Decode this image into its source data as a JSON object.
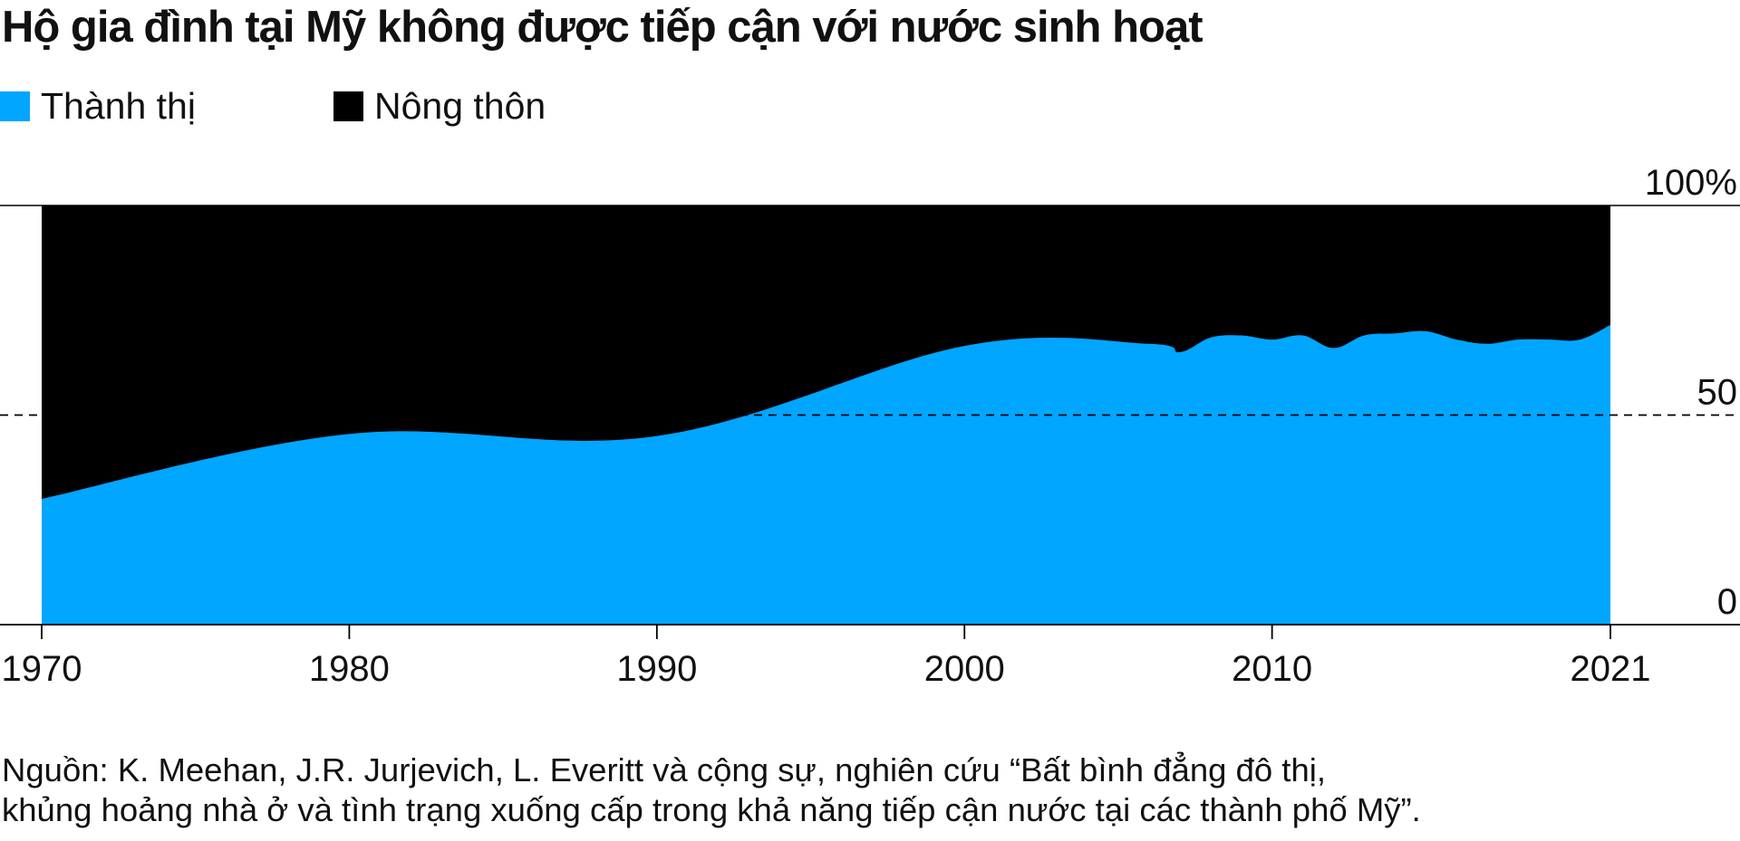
{
  "chart_data": {
    "type": "area",
    "stacked": true,
    "normalized": true,
    "title": "Hộ gia đình tại Mỹ không được tiếp cận với nước sinh hoạt",
    "legend": {
      "position": "top-left",
      "entries": [
        {
          "label": "Thành thị",
          "color": "#00a6ff"
        },
        {
          "label": "Nông thôn",
          "color": "#000000"
        }
      ]
    },
    "x": [
      1970,
      1980,
      1990,
      2000,
      2006,
      2007,
      2008,
      2009,
      2010,
      2011,
      2012,
      2013,
      2014,
      2015,
      2016,
      2017,
      2018,
      2019,
      2020,
      2021
    ],
    "series": [
      {
        "name": "Thành thị",
        "color": "#00a6ff",
        "values": [
          30,
          45.5,
          45,
          66.5,
          67,
          65,
          68.5,
          69,
          68,
          69,
          66,
          69,
          69.5,
          70,
          68,
          67,
          68,
          68,
          68,
          71.5
        ]
      },
      {
        "name": "Nông thôn",
        "color": "#000000",
        "values": [
          70,
          54.5,
          55,
          33.5,
          33,
          35,
          31.5,
          31,
          32,
          31,
          34,
          31,
          30.5,
          30,
          32,
          33,
          32,
          32,
          32,
          28.5
        ]
      }
    ],
    "xlim": [
      1970,
      2021
    ],
    "ylim": [
      0,
      100
    ],
    "x_ticks": [
      "1970",
      "1980",
      "1990",
      "2000",
      "2010",
      "2021"
    ],
    "y_ticks": [
      {
        "value": 0,
        "label": "0"
      },
      {
        "value": 50,
        "label": "50"
      },
      {
        "value": 100,
        "label": "100%"
      }
    ],
    "reference_line": {
      "value": 50,
      "style": "dashed"
    },
    "y_axis_position": "right",
    "grid": false,
    "source": [
      "Nguồn: K. Meehan, J.R. Jurjevich, L. Everitt và cộng sự, nghiên cứu “Bất bình đẳng đô thị,",
      "khủng hoảng nhà ở và tình trạng xuống cấp trong khả năng tiếp cận nước tại các thành phố Mỹ”."
    ]
  }
}
